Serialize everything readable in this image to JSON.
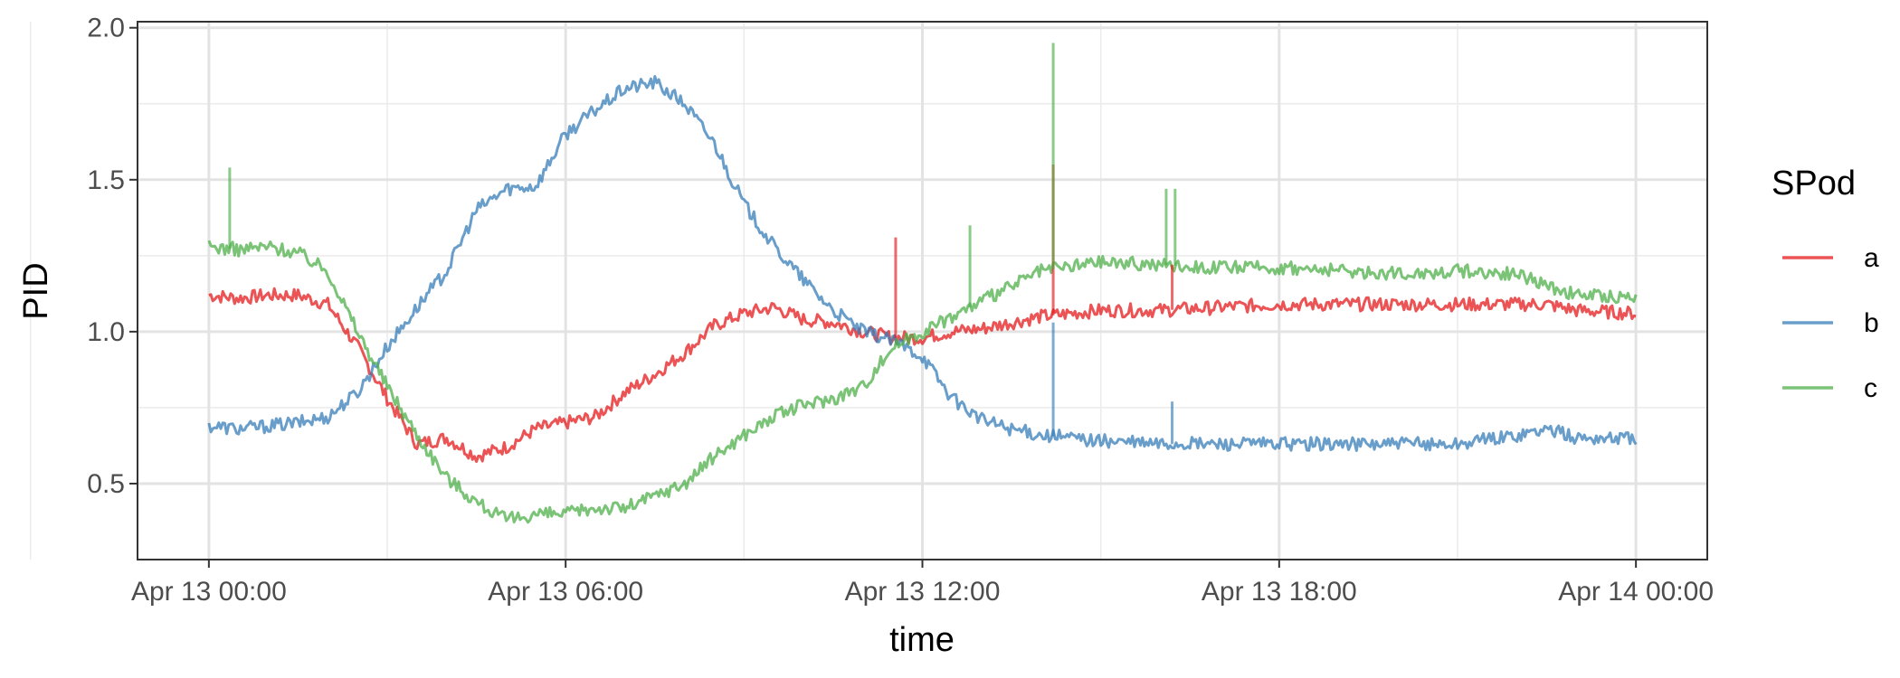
{
  "chart_data": {
    "type": "line",
    "xlabel": "time",
    "ylabel": "PID",
    "x_ticks": [
      "Apr 13 00:00",
      "Apr 13 06:00",
      "Apr 13 12:00",
      "Apr 13 18:00",
      "Apr 14 00:00"
    ],
    "x_range_hours": [
      -1.2,
      25.2
    ],
    "ylim": [
      0.25,
      2.02
    ],
    "y_ticks": [
      "0.5",
      "1.0",
      "1.5",
      "2.0"
    ],
    "grid": true,
    "legend": {
      "title": "SPod",
      "placement": "right",
      "entries": [
        "a",
        "b",
        "c"
      ]
    },
    "colors": {
      "a": "#E41A1C",
      "b": "#377EB8",
      "c": "#4DAF4A"
    },
    "series": [
      {
        "name": "a",
        "color": "#E41A1C",
        "hours": [
          0,
          0.5,
          1,
          1.5,
          2,
          2.5,
          3,
          3.5,
          4,
          4.5,
          5,
          5.5,
          6,
          6.5,
          7,
          7.5,
          8,
          8.5,
          9,
          9.5,
          10,
          10.5,
          11,
          11.5,
          12,
          12.5,
          13,
          13.5,
          14,
          15,
          16,
          17,
          18,
          19,
          20,
          21,
          22,
          22.5,
          23,
          24
        ],
        "values": [
          1.12,
          1.11,
          1.12,
          1.12,
          1.09,
          0.95,
          0.78,
          0.63,
          0.65,
          0.59,
          0.62,
          0.68,
          0.7,
          0.72,
          0.8,
          0.86,
          0.93,
          1.02,
          1.06,
          1.08,
          1.04,
          1.03,
          1.0,
          0.98,
          0.98,
          1.0,
          1.01,
          1.03,
          1.05,
          1.07,
          1.07,
          1.08,
          1.09,
          1.09,
          1.09,
          1.09,
          1.09,
          1.09,
          1.07,
          1.06
        ]
      },
      {
        "name": "b",
        "color": "#377EB8",
        "hours": [
          0,
          0.5,
          1,
          1.5,
          2,
          2.5,
          3,
          3.5,
          4,
          4.5,
          5,
          5.5,
          6,
          6.5,
          7,
          7.5,
          8,
          8.5,
          9,
          9.5,
          10,
          10.5,
          11,
          11.5,
          12,
          12.5,
          13,
          13.5,
          14,
          15,
          16,
          17,
          18,
          19,
          20,
          21,
          22,
          22.5,
          23,
          24
        ],
        "values": [
          0.69,
          0.68,
          0.69,
          0.7,
          0.72,
          0.8,
          0.95,
          1.08,
          1.2,
          1.4,
          1.47,
          1.48,
          1.65,
          1.73,
          1.8,
          1.82,
          1.75,
          1.62,
          1.42,
          1.28,
          1.17,
          1.07,
          1.0,
          0.97,
          0.92,
          0.78,
          0.71,
          0.68,
          0.66,
          0.64,
          0.63,
          0.63,
          0.63,
          0.63,
          0.63,
          0.63,
          0.66,
          0.68,
          0.65,
          0.65
        ]
      },
      {
        "name": "c",
        "color": "#4DAF4A",
        "hours": [
          0,
          0.5,
          1,
          1.5,
          2,
          2.5,
          3,
          3.5,
          4,
          4.5,
          5,
          5.5,
          6,
          6.5,
          7,
          7.5,
          8,
          8.5,
          9,
          9.5,
          10,
          10.5,
          11,
          11.5,
          12,
          12.5,
          13,
          13.5,
          14,
          15,
          16,
          17,
          18,
          19,
          20,
          21,
          22,
          22.5,
          23,
          24
        ],
        "values": [
          1.28,
          1.27,
          1.28,
          1.26,
          1.2,
          1.0,
          0.82,
          0.66,
          0.52,
          0.44,
          0.38,
          0.4,
          0.4,
          0.42,
          0.42,
          0.46,
          0.5,
          0.59,
          0.66,
          0.72,
          0.76,
          0.78,
          0.82,
          0.95,
          1.0,
          1.05,
          1.1,
          1.15,
          1.2,
          1.23,
          1.22,
          1.21,
          1.21,
          1.2,
          1.19,
          1.2,
          1.19,
          1.15,
          1.12,
          1.11
        ]
      }
    ],
    "spikes": [
      {
        "series": "a",
        "hour": 11.55,
        "value": 1.31
      },
      {
        "series": "a",
        "hour": 14.2,
        "value": 1.55
      },
      {
        "series": "a",
        "hour": 16.2,
        "value": 1.22
      },
      {
        "series": "b",
        "hour": 14.2,
        "value": 1.03
      },
      {
        "series": "b",
        "hour": 16.2,
        "value": 0.77
      },
      {
        "series": "c",
        "hour": 0.35,
        "value": 1.54
      },
      {
        "series": "c",
        "hour": 14.2,
        "value": 1.95
      },
      {
        "series": "c",
        "hour": 16.1,
        "value": 1.47
      },
      {
        "series": "c",
        "hour": 16.25,
        "value": 1.47
      },
      {
        "series": "c",
        "hour": 12.8,
        "value": 1.35
      }
    ]
  }
}
